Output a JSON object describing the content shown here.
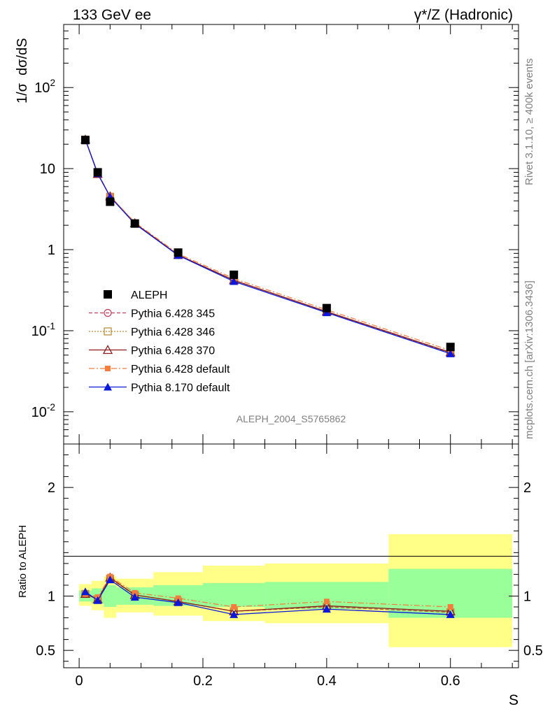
{
  "header": {
    "left": "133 GeV ee",
    "right": "γ*/Z (Hadronic)"
  },
  "side_labels": {
    "rivet": "Rivet 3.1.10, ≥ 400k events",
    "mcplots": "mcplots.cern.ch [arXiv:1306.3436]"
  },
  "analysis_label": "ALEPH_2004_S5765862",
  "chart_data": [
    {
      "type": "line",
      "panel": "main",
      "ylabel": "1/σ  dσ/dS",
      "yscale": "log",
      "ylim": [
        0.004,
        600
      ],
      "xlim": [
        -0.025,
        0.71
      ],
      "y_tick_labels": [
        "10^-2",
        "10^-1",
        "1",
        "10",
        "10^2"
      ],
      "legend_position": "lower-left",
      "series": [
        {
          "name": "ALEPH",
          "style": "data",
          "color": "#000000",
          "x": [
            0.01,
            0.03,
            0.05,
            0.09,
            0.16,
            0.25,
            0.4,
            0.6
          ],
          "y": [
            22.5,
            9.0,
            3.9,
            2.1,
            0.92,
            0.49,
            0.19,
            0.063
          ]
        },
        {
          "name": "Pythia 6.428 345",
          "style": "open-circle-dashed",
          "color": "#c0405a",
          "x": [
            0.01,
            0.03,
            0.05,
            0.09,
            0.16,
            0.25,
            0.4,
            0.6
          ],
          "y": [
            22.8,
            8.6,
            4.5,
            2.11,
            0.86,
            0.42,
            0.171,
            0.053
          ]
        },
        {
          "name": "Pythia 6.428 346",
          "style": "open-square-dotted",
          "color": "#b8862e",
          "x": [
            0.01,
            0.03,
            0.05,
            0.09,
            0.16,
            0.25,
            0.4,
            0.6
          ],
          "y": [
            22.8,
            8.6,
            4.5,
            2.11,
            0.86,
            0.42,
            0.171,
            0.053
          ]
        },
        {
          "name": "Pythia 6.428 370",
          "style": "open-triangle-solid",
          "color": "#8b1a1a",
          "x": [
            0.01,
            0.03,
            0.05,
            0.09,
            0.16,
            0.25,
            0.4,
            0.6
          ],
          "y": [
            22.8,
            8.6,
            4.55,
            2.12,
            0.86,
            0.42,
            0.172,
            0.054
          ]
        },
        {
          "name": "Pythia 6.428 default",
          "style": "filled-square-dashdot",
          "color": "#f47c3c",
          "x": [
            0.01,
            0.03,
            0.05,
            0.09,
            0.16,
            0.25,
            0.4,
            0.6
          ],
          "y": [
            23.0,
            8.8,
            4.6,
            2.17,
            0.89,
            0.44,
            0.181,
            0.057
          ]
        },
        {
          "name": "Pythia 8.170 default",
          "style": "filled-triangle-solid",
          "color": "#0b18d9",
          "x": [
            0.01,
            0.03,
            0.05,
            0.09,
            0.16,
            0.25,
            0.4,
            0.6
          ],
          "y": [
            23.0,
            8.7,
            4.5,
            2.08,
            0.85,
            0.405,
            0.167,
            0.052
          ]
        }
      ]
    },
    {
      "type": "line",
      "panel": "ratio",
      "ylabel": "Ratio to ALEPH",
      "xlabel": "S",
      "ylim": [
        0.34,
        2.4
      ],
      "xlim": [
        -0.025,
        0.71
      ],
      "x_tick_labels": [
        "0",
        "0.2",
        "0.4",
        "0.6"
      ],
      "y_tick_labels": [
        "0.5",
        "1",
        "2"
      ],
      "uncertainty_bands": {
        "x_edges": [
          0.0,
          0.02,
          0.04,
          0.06,
          0.12,
          0.2,
          0.3,
          0.5,
          0.7
        ],
        "inner_green": [
          [
            0.95,
            1.05
          ],
          [
            0.93,
            1.07
          ],
          [
            0.9,
            1.1
          ],
          [
            0.92,
            1.08
          ],
          [
            0.91,
            1.1
          ],
          [
            0.9,
            1.12
          ],
          [
            0.88,
            1.13
          ],
          [
            0.8,
            1.25
          ]
        ],
        "outer_yellow": [
          [
            0.91,
            1.11
          ],
          [
            0.87,
            1.14
          ],
          [
            0.8,
            1.18
          ],
          [
            0.85,
            1.16
          ],
          [
            0.82,
            1.22
          ],
          [
            0.77,
            1.28
          ],
          [
            0.75,
            1.3
          ],
          [
            0.53,
            1.57
          ]
        ]
      },
      "series": [
        {
          "name": "Pythia 6.428 345",
          "x": [
            0.01,
            0.03,
            0.05,
            0.09,
            0.16,
            0.25,
            0.4,
            0.6
          ],
          "y": [
            1.02,
            0.97,
            1.16,
            1.01,
            0.95,
            0.86,
            0.9,
            0.85
          ]
        },
        {
          "name": "Pythia 6.428 346",
          "x": [
            0.01,
            0.03,
            0.05,
            0.09,
            0.16,
            0.25,
            0.4,
            0.6
          ],
          "y": [
            1.02,
            0.97,
            1.16,
            1.01,
            0.95,
            0.86,
            0.9,
            0.85
          ]
        },
        {
          "name": "Pythia 6.428 370",
          "x": [
            0.01,
            0.03,
            0.05,
            0.09,
            0.16,
            0.25,
            0.4,
            0.6
          ],
          "y": [
            1.02,
            0.97,
            1.17,
            1.01,
            0.95,
            0.86,
            0.91,
            0.86
          ]
        },
        {
          "name": "Pythia 6.428 default",
          "x": [
            0.01,
            0.03,
            0.05,
            0.09,
            0.16,
            0.25,
            0.4,
            0.6
          ],
          "y": [
            1.02,
            0.99,
            1.18,
            1.03,
            0.98,
            0.9,
            0.95,
            0.9
          ]
        },
        {
          "name": "Pythia 8.170 default",
          "x": [
            0.01,
            0.03,
            0.05,
            0.09,
            0.16,
            0.25,
            0.4,
            0.6
          ],
          "y": [
            1.04,
            0.96,
            1.15,
            0.99,
            0.94,
            0.83,
            0.88,
            0.83
          ]
        }
      ]
    }
  ]
}
